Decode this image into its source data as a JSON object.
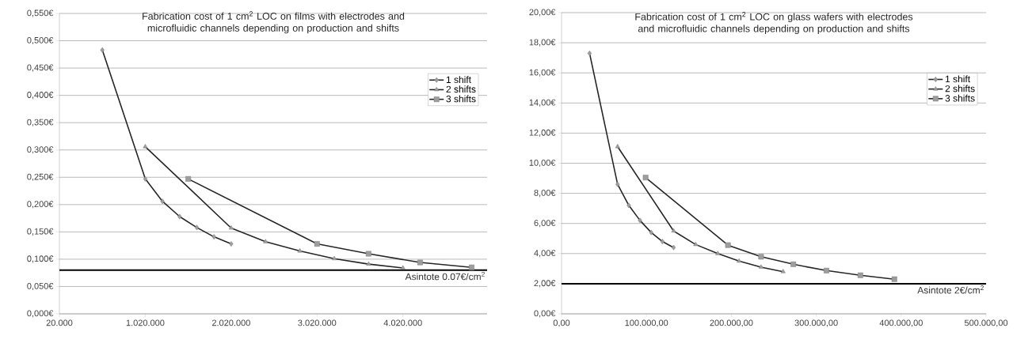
{
  "chart_data": [
    {
      "type": "line",
      "title": "Fabrication cost of 1 cm$^{2}$ LOC on films with electrodes and microfluidic channels depending on production and shifts",
      "grid": "y",
      "legend": "top right",
      "line_style": "solid",
      "xlim": [
        20000,
        5000000
      ],
      "xticks": [
        {
          "value": 20000,
          "label": "20.000"
        },
        {
          "value": 1020000,
          "label": "1.020.000"
        },
        {
          "value": 2020000,
          "label": "2.020.000"
        },
        {
          "value": 3020000,
          "label": "3.020.000"
        },
        {
          "value": 4020000,
          "label": "4.020.000"
        }
      ],
      "ylim": [
        0,
        0.55
      ],
      "yticks": [
        {
          "value": 0,
          "label": "0,000€"
        },
        {
          "value": 0.05,
          "label": "0,050€"
        },
        {
          "value": 0.1,
          "label": "0,100€"
        },
        {
          "value": 0.15,
          "label": "0,150€"
        },
        {
          "value": 0.2,
          "label": "0,200€"
        },
        {
          "value": 0.25,
          "label": "0,250€"
        },
        {
          "value": 0.3,
          "label": "0,300€"
        },
        {
          "value": 0.35,
          "label": "0,350€"
        },
        {
          "value": 0.4,
          "label": "0,400€"
        },
        {
          "value": 0.45,
          "label": "0,450€"
        },
        {
          "value": 0.5,
          "label": "0,500€"
        },
        {
          "value": 0.55,
          "label": "0,550€"
        }
      ],
      "ref_lines": [
        {
          "axis": "y",
          "value": 0.08,
          "label": "Asintote 0.07€/cm$^{2}$",
          "color": "#000000"
        }
      ],
      "series": [
        {
          "name": "1 shift",
          "color": "#262626",
          "marker": "diamond",
          "x": [
            520000,
            1020000,
            1220000,
            1420000,
            1620000,
            1820000,
            2020000
          ],
          "values": [
            0.483,
            0.247,
            0.206,
            0.178,
            0.158,
            0.141,
            0.128
          ]
        },
        {
          "name": "2 shifts",
          "color": "#262626",
          "marker": "triangle",
          "x": [
            1020000,
            2020000,
            2420000,
            2820000,
            3220000,
            3620000,
            4020000
          ],
          "values": [
            0.306,
            0.157,
            0.132,
            0.115,
            0.101,
            0.091,
            0.084
          ]
        },
        {
          "name": "3 shifts",
          "color": "#262626",
          "marker": "square",
          "x": [
            1520000,
            3020000,
            3620000,
            4220000,
            4820000
          ],
          "values": [
            0.247,
            0.128,
            0.11,
            0.094,
            0.085
          ]
        }
      ]
    },
    {
      "type": "line",
      "title": "Fabrication cost of 1 cm$^{2}$ LOC on glass wafers with electrodes and microfluidic channels depending on production and shifts",
      "grid": "y",
      "legend": "top right",
      "line_style": "solid",
      "xlim": [
        0,
        500000
      ],
      "xticks": [
        {
          "value": 0,
          "label": "0,00"
        },
        {
          "value": 100000,
          "label": "100.000,00"
        },
        {
          "value": 200000,
          "label": "200.000,00"
        },
        {
          "value": 300000,
          "label": "300.000,00"
        },
        {
          "value": 400000,
          "label": "400.000,00"
        },
        {
          "value": 500000,
          "label": "500.000,00"
        }
      ],
      "ylim": [
        0,
        20
      ],
      "yticks": [
        {
          "value": 0,
          "label": "0,00€"
        },
        {
          "value": 2,
          "label": "2,00€"
        },
        {
          "value": 4,
          "label": "4,00€"
        },
        {
          "value": 6,
          "label": "6,00€"
        },
        {
          "value": 8,
          "label": "8,00€"
        },
        {
          "value": 10,
          "label": "10,00€"
        },
        {
          "value": 12,
          "label": "12,00€"
        },
        {
          "value": 14,
          "label": "14,00€"
        },
        {
          "value": 16,
          "label": "16,00€"
        },
        {
          "value": 18,
          "label": "18,00€"
        },
        {
          "value": 20,
          "label": "20,00€"
        }
      ],
      "ref_lines": [
        {
          "axis": "y",
          "value": 2,
          "label": "Asintote 2€/cm$^{2}$",
          "color": "#000000"
        }
      ],
      "series": [
        {
          "name": "1 shift",
          "color": "#262626",
          "marker": "diamond",
          "x": [
            33000,
            66000,
            79200,
            92400,
            105600,
            118800,
            132000
          ],
          "values": [
            17.3,
            8.6,
            7.2,
            6.2,
            5.4,
            4.8,
            4.4
          ]
        },
        {
          "name": "2 shifts",
          "color": "#262626",
          "marker": "triangle",
          "x": [
            66000,
            132000,
            158000,
            184000,
            209000,
            235000,
            261000
          ],
          "values": [
            11.1,
            5.5,
            4.6,
            4.0,
            3.5,
            3.1,
            2.8
          ]
        },
        {
          "name": "3 shifts",
          "color": "#262626",
          "marker": "square",
          "x": [
            99000,
            196000,
            235000,
            273000,
            312000,
            352000,
            392000
          ],
          "values": [
            9.05,
            4.56,
            3.79,
            3.29,
            2.87,
            2.56,
            2.3
          ]
        }
      ]
    }
  ]
}
